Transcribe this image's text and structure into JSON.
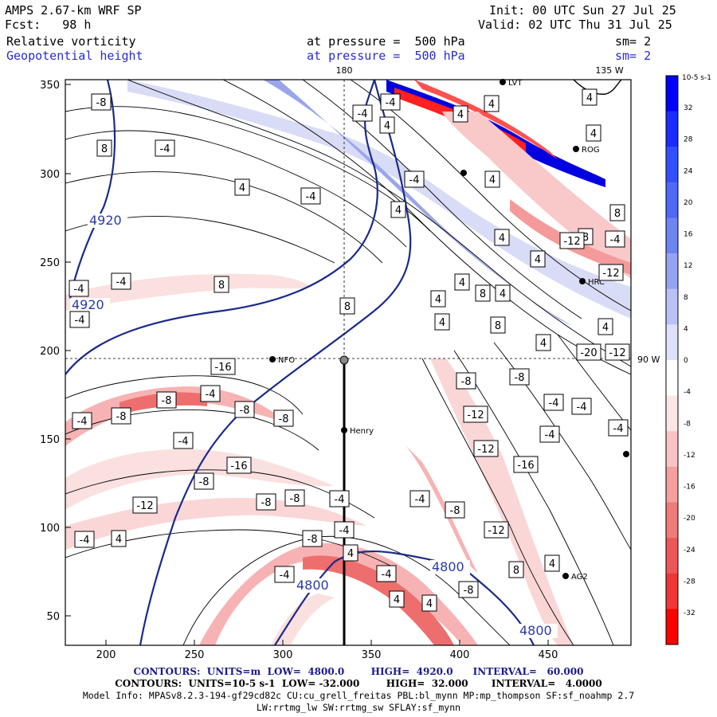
{
  "header": {
    "model": "AMPS 2.67-km WRF SP",
    "fcst": "Fcst:   98 h",
    "init": "Init: 00 UTC Sun 27 Jul 25",
    "valid": "Valid: 02 UTC Thu 31 Jul 25",
    "field1_name": "Relative vorticity",
    "field1_pressure": "at pressure =  500 hPa",
    "field1_sm": "sm= 2",
    "field2_name": "Geopotential height",
    "field2_pressure": "at pressure =  500 hPa",
    "field2_sm": "sm= 2"
  },
  "map": {
    "meridian_label_180": "180",
    "meridian_label_135": "135 W",
    "parallel_label_90": "90 W",
    "x_ticks": [
      "200",
      "250",
      "300",
      "350",
      "400",
      "450"
    ],
    "y_ticks": [
      "350",
      "300",
      "250",
      "200",
      "150",
      "100",
      "50"
    ],
    "stations": [
      "NFO",
      "Henry",
      "LVT",
      "ROG",
      "HRC",
      "AG2"
    ],
    "height_labels": [
      "4920",
      "4920",
      "4800",
      "4800",
      "4800"
    ],
    "vort_labels": [
      "-8",
      "-4",
      "-4",
      "4",
      "4",
      "4",
      "4",
      "8",
      "-4",
      "4",
      "4",
      "-4",
      "-4",
      "4",
      "4",
      "8",
      "4",
      "8",
      "4",
      "-12",
      "-4",
      "-12",
      "-4",
      "8",
      "4",
      "8",
      "4",
      "8",
      "4",
      "4",
      "-4",
      "4",
      "8",
      "-4",
      "4",
      "-20",
      "-12",
      "-16",
      "-8",
      "-8",
      "-4",
      "-4",
      "-4",
      "-8",
      "-4",
      "-8",
      "-4",
      "-8",
      "-8",
      "-4",
      "-12",
      "-12",
      "-4",
      "-16",
      "-16",
      "-8",
      "-12",
      "-8",
      "-8",
      "-4",
      "-4",
      "-8",
      "-4",
      "-8",
      "-12",
      "-4",
      "4",
      "4",
      "-4",
      "-4",
      "4",
      "8",
      "-8",
      "4",
      "4"
    ],
    "colors": {
      "positive": "#0000ff",
      "negative": "#ff0000",
      "contour": "#000000",
      "height_contour": "#1a2a8a"
    }
  },
  "colorbar": {
    "unit_label": "10-5 s-1",
    "ticks": [
      "32",
      "28",
      "24",
      "20",
      "16",
      "12",
      "8",
      "4",
      "0",
      "-4",
      "-8",
      "-12",
      "-16",
      "-20",
      "-24",
      "-28",
      "-32"
    ]
  },
  "footer": {
    "contours_height": "CONTOURS:  UNITS=m  LOW=  4800.0        HIGH=  4920.0      INTERVAL=   60.000",
    "contours_vort": "CONTOURS:  UNITS=10-5 s-1  LOW= -32.000        HIGH=  32.000       INTERVAL=   4.0000",
    "model_info": "Model Info: MPASv8.2.3-194-gf29cd82c CU:cu_grell_freitas PBL:bl_mynn MP:mp_thompson SF:sf_noahmp 2.7",
    "model_info2": "LW:rrtmg_lw SW:rrtmg_sw SFLAY:sf_mynn"
  }
}
